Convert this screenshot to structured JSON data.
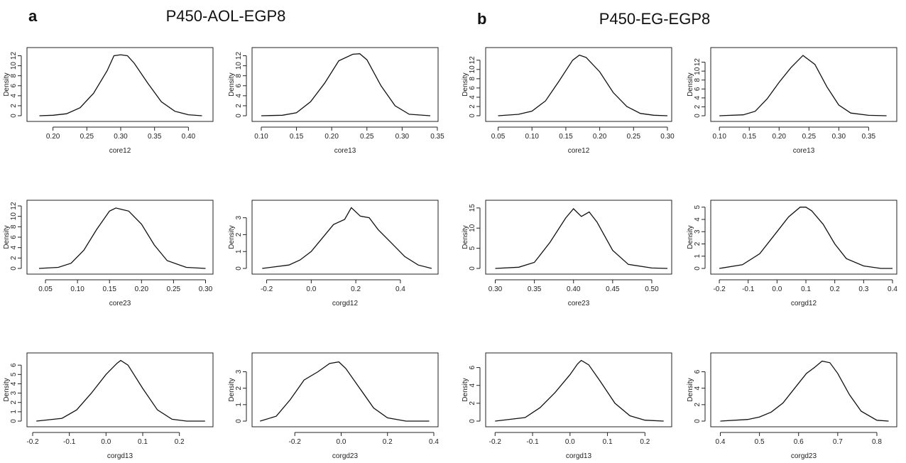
{
  "panels": [
    {
      "label": "a",
      "title": "P450-AOL-EGP8"
    },
    {
      "label": "b",
      "title": "P450-EG-EGP8"
    }
  ],
  "chart_data": [
    {
      "type": "line",
      "panel": "a",
      "xlabel": "core12",
      "ylabel": "Density",
      "xlim": [
        0.17,
        0.43
      ],
      "ylim": [
        0,
        12.5
      ],
      "xticks": [
        0.2,
        0.25,
        0.3,
        0.35,
        0.4
      ],
      "xtick_labels": [
        "0.20",
        "0.25",
        "0.30",
        "0.35",
        "0.40"
      ],
      "yticks": [
        0,
        2,
        4,
        6,
        8,
        10,
        12
      ],
      "ytick_labels": [
        "0",
        "2",
        "4",
        "6",
        "8",
        "10",
        "12"
      ],
      "x": [
        0.18,
        0.2,
        0.22,
        0.24,
        0.26,
        0.28,
        0.29,
        0.3,
        0.31,
        0.32,
        0.34,
        0.36,
        0.38,
        0.4,
        0.42
      ],
      "y": [
        0.0,
        0.1,
        0.4,
        1.6,
        4.5,
        9.0,
        12.0,
        12.2,
        12.0,
        10.5,
        6.5,
        2.8,
        0.9,
        0.2,
        0.0
      ]
    },
    {
      "type": "line",
      "panel": "a",
      "xlabel": "core13",
      "ylabel": "Density",
      "xlim": [
        0.095,
        0.345
      ],
      "ylim": [
        0,
        12.5
      ],
      "xticks": [
        0.1,
        0.15,
        0.2,
        0.25,
        0.3,
        0.35
      ],
      "xtick_labels": [
        "0.10",
        "0.15",
        "0.20",
        "0.25",
        "0.30",
        "0.35"
      ],
      "yticks": [
        0,
        2,
        4,
        6,
        8,
        10,
        12
      ],
      "ytick_labels": [
        "0",
        "2",
        "4",
        "6",
        "8",
        "10",
        "12"
      ],
      "x": [
        0.1,
        0.13,
        0.15,
        0.17,
        0.19,
        0.21,
        0.23,
        0.24,
        0.25,
        0.27,
        0.29,
        0.31,
        0.34
      ],
      "y": [
        0.0,
        0.1,
        0.6,
        2.8,
        6.5,
        11.0,
        12.3,
        12.4,
        11.2,
        6.0,
        2.0,
        0.3,
        0.0
      ]
    },
    {
      "type": "line",
      "panel": "b",
      "xlabel": "core12",
      "ylabel": "Density",
      "xlim": [
        0.04,
        0.3
      ],
      "ylim": [
        0,
        13.5
      ],
      "xticks": [
        0.05,
        0.1,
        0.15,
        0.2,
        0.25,
        0.3
      ],
      "xtick_labels": [
        "0.05",
        "0.10",
        "0.15",
        "0.20",
        "0.25",
        "0.30"
      ],
      "yticks": [
        0,
        2,
        4,
        6,
        8,
        10,
        12
      ],
      "ytick_labels": [
        "0",
        "2",
        "4",
        "6",
        "8",
        "10",
        "12"
      ],
      "x": [
        0.05,
        0.08,
        0.1,
        0.12,
        0.14,
        0.16,
        0.17,
        0.18,
        0.2,
        0.22,
        0.24,
        0.26,
        0.28,
        0.3
      ],
      "y": [
        0.0,
        0.3,
        1.0,
        3.2,
        7.5,
        12.0,
        13.1,
        12.6,
        9.5,
        5.0,
        2.0,
        0.5,
        0.1,
        0.0
      ]
    },
    {
      "type": "line",
      "panel": "b",
      "xlabel": "core13",
      "ylabel": "Density",
      "xlim": [
        0.095,
        0.39
      ],
      "ylim": [
        0,
        14
      ],
      "xticks": [
        0.1,
        0.15,
        0.2,
        0.25,
        0.3,
        0.35
      ],
      "xtick_labels": [
        "0.10",
        "0.15",
        "0.20",
        "0.25",
        "0.30",
        "0.35"
      ],
      "yticks": [
        0,
        2,
        4,
        6,
        8,
        10,
        12
      ],
      "ytick_labels": [
        "0",
        "2",
        "4",
        "6",
        "8",
        "10",
        "12"
      ],
      "x": [
        0.1,
        0.14,
        0.16,
        0.18,
        0.2,
        0.22,
        0.24,
        0.26,
        0.28,
        0.3,
        0.32,
        0.35,
        0.38
      ],
      "y": [
        0.0,
        0.2,
        1.0,
        3.8,
        7.5,
        10.8,
        13.5,
        11.5,
        6.5,
        2.4,
        0.6,
        0.1,
        0.0
      ]
    },
    {
      "type": "line",
      "panel": "a",
      "xlabel": "core23",
      "ylabel": "Density",
      "xlim": [
        0.03,
        0.305
      ],
      "ylim": [
        0,
        12
      ],
      "xticks": [
        0.05,
        0.1,
        0.15,
        0.2,
        0.25,
        0.3
      ],
      "xtick_labels": [
        "0.05",
        "0.10",
        "0.15",
        "0.20",
        "0.25",
        "0.30"
      ],
      "yticks": [
        0,
        2,
        4,
        6,
        8,
        10,
        12
      ],
      "ytick_labels": [
        "0",
        "2",
        "4",
        "6",
        "8",
        "10",
        "12"
      ],
      "x": [
        0.04,
        0.07,
        0.09,
        0.11,
        0.13,
        0.15,
        0.16,
        0.17,
        0.18,
        0.2,
        0.22,
        0.24,
        0.27,
        0.3
      ],
      "y": [
        0.0,
        0.2,
        1.0,
        3.5,
        7.5,
        11.0,
        11.6,
        11.3,
        11.0,
        8.5,
        4.5,
        1.5,
        0.2,
        0.0
      ]
    },
    {
      "type": "line",
      "panel": "a",
      "xlabel": "corgd12",
      "ylabel": "Density",
      "xlim": [
        -0.24,
        0.55
      ],
      "ylim": [
        0,
        3.7
      ],
      "xticks": [
        -0.2,
        0.0,
        0.2,
        0.4
      ],
      "xtick_labels": [
        "-0.2",
        "0.0",
        "0.2",
        "0.4"
      ],
      "yticks": [
        0,
        1,
        2,
        3
      ],
      "ytick_labels": [
        "0",
        "1",
        "2",
        "3"
      ],
      "x": [
        -0.22,
        -0.1,
        -0.05,
        0.0,
        0.05,
        0.1,
        0.15,
        0.18,
        0.22,
        0.26,
        0.3,
        0.36,
        0.42,
        0.48,
        0.54
      ],
      "y": [
        0.0,
        0.2,
        0.5,
        1.0,
        1.8,
        2.6,
        2.9,
        3.6,
        3.1,
        3.0,
        2.3,
        1.5,
        0.7,
        0.2,
        0.0
      ]
    },
    {
      "type": "line",
      "panel": "b",
      "xlabel": "core23",
      "ylabel": "Density",
      "xlim": [
        0.295,
        0.52
      ],
      "ylim": [
        0,
        15.5
      ],
      "xticks": [
        0.3,
        0.35,
        0.4,
        0.45,
        0.5
      ],
      "xtick_labels": [
        "0.30",
        "0.35",
        "0.40",
        "0.45",
        "0.50"
      ],
      "yticks": [
        0,
        5,
        10,
        15
      ],
      "ytick_labels": [
        "0",
        "5",
        "10",
        "15"
      ],
      "x": [
        0.3,
        0.33,
        0.35,
        0.37,
        0.39,
        0.4,
        0.41,
        0.42,
        0.43,
        0.45,
        0.47,
        0.5,
        0.52
      ],
      "y": [
        0.0,
        0.3,
        1.5,
        6.5,
        12.5,
        14.8,
        12.9,
        14.0,
        11.5,
        4.5,
        1.0,
        0.1,
        0.0
      ]
    },
    {
      "type": "line",
      "panel": "b",
      "xlabel": "corgd12",
      "ylabel": "Density",
      "xlim": [
        -0.21,
        0.4
      ],
      "ylim": [
        0,
        5.1
      ],
      "xticks": [
        -0.2,
        -0.1,
        0.0,
        0.1,
        0.2,
        0.3,
        0.4
      ],
      "xtick_labels": [
        "-0.2",
        "-0.1",
        "0.0",
        "0.1",
        "0.2",
        "0.3",
        "0.4"
      ],
      "yticks": [
        0,
        1,
        2,
        3,
        4,
        5
      ],
      "ytick_labels": [
        "0",
        "1",
        "2",
        "3",
        "4",
        "5"
      ],
      "x": [
        -0.2,
        -0.12,
        -0.06,
        0.0,
        0.04,
        0.08,
        0.1,
        0.12,
        0.16,
        0.2,
        0.24,
        0.3,
        0.36,
        0.4
      ],
      "y": [
        0.0,
        0.3,
        1.2,
        3.0,
        4.2,
        5.0,
        5.0,
        4.7,
        3.6,
        2.0,
        0.8,
        0.2,
        0.0,
        0.0
      ]
    },
    {
      "type": "line",
      "panel": "a",
      "xlabel": "corgd13",
      "ylabel": "Density",
      "xlim": [
        -0.2,
        0.28
      ],
      "ylim": [
        0,
        6.7
      ],
      "xticks": [
        -0.2,
        -0.1,
        0.0,
        0.1,
        0.2
      ],
      "xtick_labels": [
        "-0.2",
        "-0.1",
        "0.0",
        "0.1",
        "0.2"
      ],
      "yticks": [
        0,
        1,
        2,
        3,
        4,
        5,
        6
      ],
      "ytick_labels": [
        "0",
        "1",
        "2",
        "3",
        "4",
        "5",
        "6"
      ],
      "x": [
        -0.19,
        -0.12,
        -0.08,
        -0.04,
        0.0,
        0.03,
        0.04,
        0.06,
        0.1,
        0.14,
        0.18,
        0.22,
        0.27
      ],
      "y": [
        0.0,
        0.3,
        1.2,
        3.0,
        5.0,
        6.2,
        6.5,
        6.0,
        3.5,
        1.2,
        0.2,
        0.0,
        0.0
      ]
    },
    {
      "type": "line",
      "panel": "a",
      "xlabel": "corgd23",
      "ylabel": "Density",
      "xlim": [
        -0.36,
        0.4
      ],
      "ylim": [
        0,
        3.8
      ],
      "xticks": [
        -0.2,
        0.0,
        0.2,
        0.4
      ],
      "xtick_labels": [
        "-0.2",
        "0.0",
        "0.2",
        "0.4"
      ],
      "yticks": [
        0,
        1,
        2,
        3
      ],
      "ytick_labels": [
        "0",
        "1",
        "2",
        "3"
      ],
      "x": [
        -0.35,
        -0.28,
        -0.22,
        -0.16,
        -0.1,
        -0.05,
        -0.01,
        0.02,
        0.08,
        0.14,
        0.2,
        0.28,
        0.38
      ],
      "y": [
        0.0,
        0.3,
        1.3,
        2.5,
        3.0,
        3.5,
        3.6,
        3.2,
        2.0,
        0.8,
        0.2,
        0.0,
        0.0
      ]
    },
    {
      "type": "line",
      "panel": "b",
      "xlabel": "corgd13",
      "ylabel": "Density",
      "xlim": [
        -0.21,
        0.26
      ],
      "ylim": [
        0,
        7
      ],
      "xticks": [
        -0.2,
        -0.1,
        0.0,
        0.1,
        0.2
      ],
      "xtick_labels": [
        "-0.2",
        "-0.1",
        "0.0",
        "0.1",
        "0.2"
      ],
      "yticks": [
        0,
        2,
        4,
        6
      ],
      "ytick_labels": [
        "0",
        "2",
        "4",
        "6"
      ],
      "x": [
        -0.2,
        -0.12,
        -0.08,
        -0.04,
        0.0,
        0.02,
        0.03,
        0.05,
        0.08,
        0.12,
        0.16,
        0.2,
        0.25
      ],
      "y": [
        0.0,
        0.4,
        1.5,
        3.2,
        5.2,
        6.4,
        6.8,
        6.3,
        4.5,
        2.0,
        0.6,
        0.1,
        0.0
      ]
    },
    {
      "type": "line",
      "panel": "b",
      "xlabel": "corgd23",
      "ylabel": "Density",
      "xlim": [
        0.39,
        0.84
      ],
      "ylim": [
        0,
        7.6
      ],
      "xticks": [
        0.4,
        0.5,
        0.6,
        0.7,
        0.8
      ],
      "xtick_labels": [
        "0.4",
        "0.5",
        "0.6",
        "0.7",
        "0.8"
      ],
      "yticks": [
        0,
        2,
        4,
        6
      ],
      "ytick_labels": [
        "0",
        "2",
        "4",
        "6"
      ],
      "x": [
        0.4,
        0.47,
        0.5,
        0.53,
        0.56,
        0.59,
        0.62,
        0.64,
        0.66,
        0.68,
        0.7,
        0.73,
        0.76,
        0.8,
        0.83
      ],
      "y": [
        0.0,
        0.2,
        0.5,
        1.1,
        2.2,
        4.0,
        5.8,
        6.5,
        7.3,
        7.1,
        5.8,
        3.2,
        1.2,
        0.1,
        0.0
      ]
    }
  ]
}
